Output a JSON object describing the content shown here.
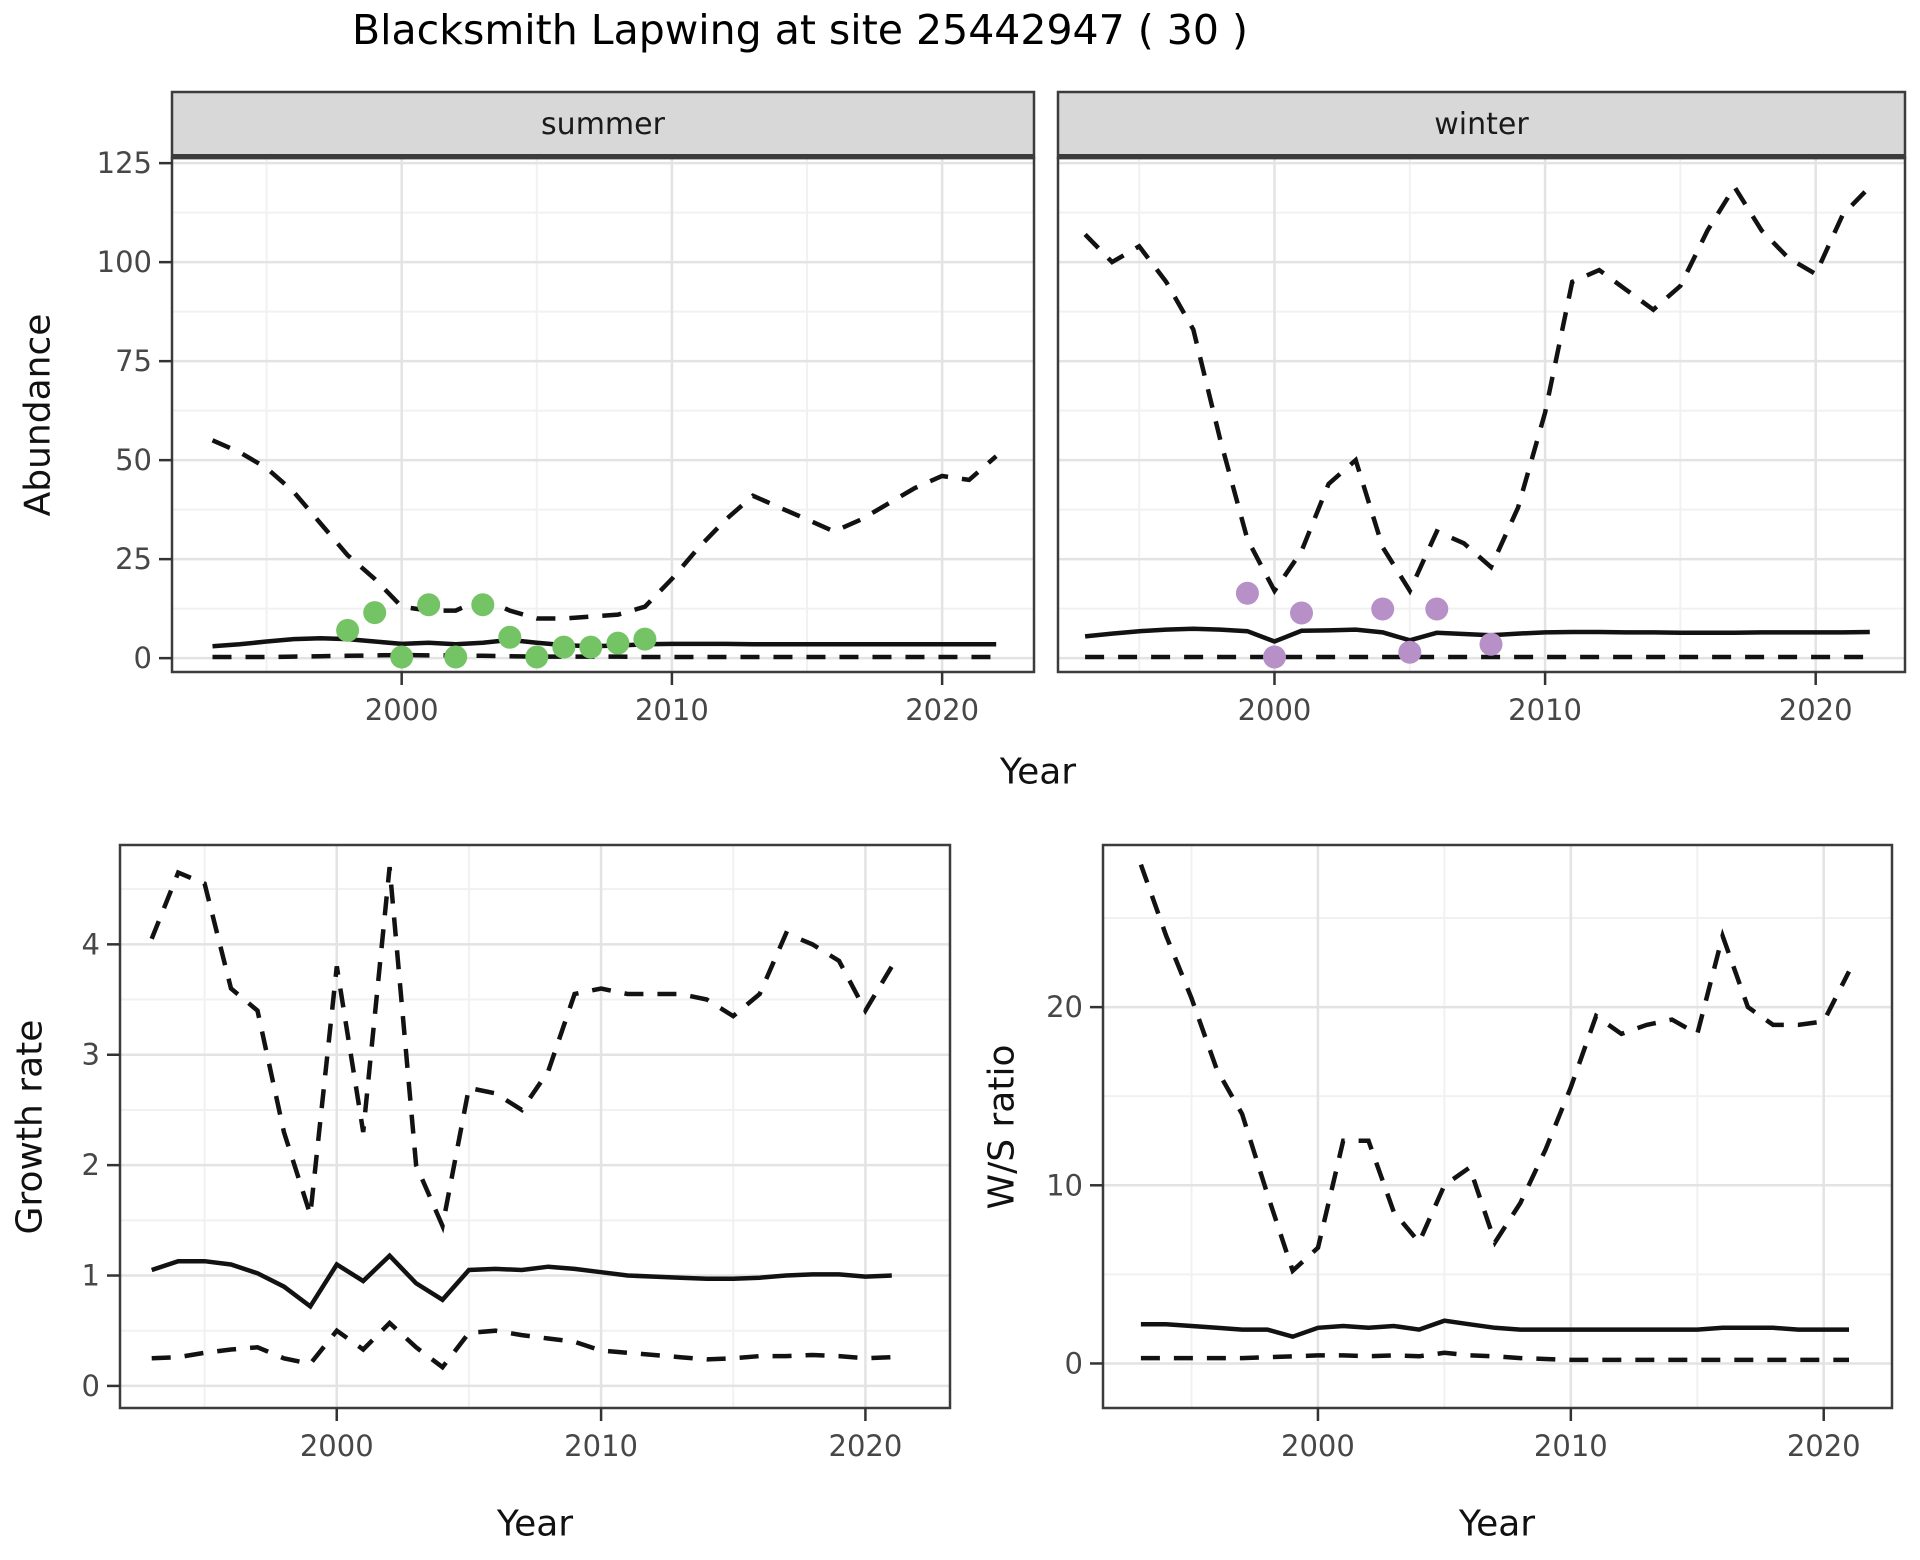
{
  "title": "Blacksmith Lapwing at site 25442947 ( 30 )",
  "colors": {
    "background": "#ffffff",
    "line": "#121212",
    "grid_major": "#e3e3e3",
    "grid_minor": "#f1f1f1",
    "panel_border": "#3c3c3c",
    "strip_fill": "#d8d8d8",
    "tick": "#333333",
    "tick_label": "#474747",
    "summer_points": "#74c465",
    "winter_points": "#b690c7"
  },
  "chart_data": [
    {
      "id": "abundance-summer",
      "type": "line",
      "facet_label": "summer",
      "xlabel": "Year",
      "ylabel": "Abundance",
      "xlim": [
        1991.5,
        2023.4
      ],
      "ylim": [
        -3.5,
        126.3
      ],
      "x_ticks": [
        2000,
        2010,
        2020
      ],
      "x_minor": [
        1995,
        2005,
        2015
      ],
      "y_ticks": [
        0,
        25,
        50,
        75,
        100,
        125
      ],
      "y_minor": [
        12.5,
        37.5,
        62.5,
        87.5,
        112.5
      ],
      "x": [
        1993,
        1994,
        1995,
        1996,
        1997,
        1998,
        1999,
        2000,
        2001,
        2002,
        2003,
        2004,
        2005,
        2006,
        2007,
        2008,
        2009,
        2010,
        2011,
        2012,
        2013,
        2014,
        2015,
        2016,
        2017,
        2018,
        2019,
        2020,
        2021,
        2022
      ],
      "series": [
        {
          "name": "upper-ci",
          "style": "dashed",
          "values": [
            55,
            52,
            48,
            42,
            34,
            26,
            20,
            13,
            12,
            12,
            15,
            12,
            10,
            10,
            10.5,
            11,
            13,
            20,
            28,
            35,
            41,
            38,
            35,
            32,
            35,
            39,
            43,
            46,
            45,
            51
          ]
        },
        {
          "name": "median",
          "style": "solid",
          "values": [
            3,
            3.5,
            4.2,
            4.8,
            5,
            4.8,
            4.2,
            3.6,
            3.9,
            3.5,
            3.9,
            4.6,
            3.9,
            3.3,
            3,
            3.2,
            3.5,
            3.6,
            3.6,
            3.6,
            3.5,
            3.5,
            3.5,
            3.5,
            3.5,
            3.5,
            3.5,
            3.5,
            3.5,
            3.5
          ]
        },
        {
          "name": "lower-ci",
          "style": "dashed",
          "values": [
            0.3,
            0.3,
            0.3,
            0.4,
            0.5,
            0.6,
            0.7,
            0.8,
            0.7,
            0.7,
            0.6,
            0.5,
            0.4,
            0.4,
            0.4,
            0.4,
            0.3,
            0.3,
            0.3,
            0.3,
            0.3,
            0.3,
            0.3,
            0.3,
            0.3,
            0.3,
            0.3,
            0.3,
            0.3,
            0.3
          ]
        }
      ],
      "points": {
        "name": "observed-counts",
        "color_key": "summer_points",
        "x": [
          1998,
          1999,
          2000,
          2001,
          2002,
          2003,
          2004,
          2005,
          2006,
          2007,
          2008,
          2009
        ],
        "y": [
          7,
          11.5,
          0.3,
          13.5,
          0.3,
          13.5,
          5.3,
          0.3,
          2.8,
          2.8,
          3.8,
          4.8
        ]
      }
    },
    {
      "id": "abundance-winter",
      "type": "line",
      "facet_label": "winter",
      "xlabel": "Year",
      "ylabel": "Abundance",
      "xlim": [
        1992.0,
        2023.3
      ],
      "ylim": [
        -3.5,
        126.3
      ],
      "x_ticks": [
        2000,
        2010,
        2020
      ],
      "x_minor": [
        1995,
        2005,
        2015
      ],
      "y_ticks": [
        0,
        25,
        50,
        75,
        100,
        125
      ],
      "y_minor": [
        12.5,
        37.5,
        62.5,
        87.5,
        112.5
      ],
      "x": [
        1993,
        1994,
        1995,
        1996,
        1997,
        1998,
        1999,
        2000,
        2001,
        2002,
        2003,
        2004,
        2005,
        2006,
        2007,
        2008,
        2009,
        2010,
        2011,
        2012,
        2013,
        2014,
        2015,
        2016,
        2017,
        2018,
        2019,
        2020,
        2021,
        2022
      ],
      "series": [
        {
          "name": "upper-ci",
          "style": "dashed",
          "values": [
            107,
            100,
            104,
            95,
            83,
            55,
            30,
            17,
            27,
            44,
            50,
            28,
            17,
            32,
            29,
            23,
            38,
            62,
            95,
            98,
            93,
            88,
            94,
            108,
            119,
            108,
            101,
            97,
            112,
            119
          ]
        },
        {
          "name": "median",
          "style": "solid",
          "values": [
            5.5,
            6.2,
            6.8,
            7.2,
            7.4,
            7.2,
            6.8,
            4.2,
            6.9,
            7,
            7.2,
            6.5,
            4.5,
            6.4,
            6.1,
            5.8,
            6.2,
            6.5,
            6.6,
            6.6,
            6.5,
            6.5,
            6.4,
            6.4,
            6.4,
            6.5,
            6.5,
            6.5,
            6.5,
            6.6
          ]
        },
        {
          "name": "lower-ci",
          "style": "dashed",
          "values": [
            0.3,
            0.3,
            0.3,
            0.3,
            0.3,
            0.3,
            0.3,
            0.3,
            0.3,
            0.3,
            0.3,
            0.3,
            0.3,
            0.3,
            0.3,
            0.3,
            0.3,
            0.3,
            0.3,
            0.3,
            0.3,
            0.3,
            0.3,
            0.3,
            0.3,
            0.3,
            0.3,
            0.3,
            0.3,
            0.3
          ]
        }
      ],
      "points": {
        "name": "observed-counts",
        "color_key": "winter_points",
        "x": [
          1999,
          2000,
          2001,
          2004,
          2005,
          2006,
          2008
        ],
        "y": [
          16.4,
          0.3,
          11.4,
          12.4,
          1.5,
          12.4,
          3.5
        ]
      }
    },
    {
      "id": "growth-rate",
      "type": "line",
      "facet_label": "",
      "xlabel": "Year",
      "ylabel": "Growth rate",
      "xlim": [
        1991.8,
        2023.2
      ],
      "ylim": [
        -0.2,
        4.9
      ],
      "x_ticks": [
        2000,
        2010,
        2020
      ],
      "x_minor": [
        1995,
        2005,
        2015
      ],
      "y_ticks": [
        0,
        1,
        2,
        3,
        4
      ],
      "y_minor": [
        0.5,
        1.5,
        2.5,
        3.5,
        4.5
      ],
      "x": [
        1993,
        1994,
        1995,
        1996,
        1997,
        1998,
        1999,
        2000,
        2001,
        2002,
        2003,
        2004,
        2005,
        2006,
        2007,
        2008,
        2009,
        2010,
        2011,
        2012,
        2013,
        2014,
        2015,
        2016,
        2017,
        2018,
        2019,
        2020,
        2021
      ],
      "series": [
        {
          "name": "upper-ci",
          "style": "dashed",
          "values": [
            4.05,
            4.65,
            4.55,
            3.6,
            3.4,
            2.3,
            1.55,
            3.8,
            2.3,
            4.7,
            2.0,
            1.45,
            2.7,
            2.65,
            2.5,
            2.85,
            3.55,
            3.6,
            3.55,
            3.55,
            3.55,
            3.5,
            3.35,
            3.55,
            4.1,
            4.0,
            3.85,
            3.4,
            3.8
          ]
        },
        {
          "name": "median",
          "style": "solid",
          "values": [
            1.05,
            1.13,
            1.13,
            1.1,
            1.02,
            0.9,
            0.72,
            1.1,
            0.95,
            1.18,
            0.93,
            0.78,
            1.05,
            1.06,
            1.05,
            1.08,
            1.06,
            1.03,
            1.0,
            0.99,
            0.98,
            0.97,
            0.97,
            0.98,
            1.0,
            1.01,
            1.01,
            0.99,
            1.0
          ]
        },
        {
          "name": "lower-ci",
          "style": "dashed",
          "values": [
            0.25,
            0.26,
            0.3,
            0.33,
            0.35,
            0.25,
            0.2,
            0.5,
            0.33,
            0.57,
            0.35,
            0.17,
            0.48,
            0.5,
            0.46,
            0.43,
            0.4,
            0.32,
            0.3,
            0.28,
            0.26,
            0.24,
            0.25,
            0.27,
            0.27,
            0.28,
            0.27,
            0.25,
            0.26
          ]
        }
      ]
    },
    {
      "id": "ws-ratio",
      "type": "line",
      "facet_label": "",
      "xlabel": "Year",
      "ylabel": "W/S ratio",
      "xlim": [
        1991.5,
        2022.7
      ],
      "ylim": [
        -2.5,
        29.1
      ],
      "x_ticks": [
        2000,
        2010,
        2020
      ],
      "x_minor": [
        1995,
        2005,
        2015
      ],
      "y_ticks": [
        0,
        10,
        20
      ],
      "y_minor": [
        5,
        15,
        25
      ],
      "x": [
        1993,
        1994,
        1995,
        1996,
        1997,
        1998,
        1999,
        2000,
        2001,
        2002,
        2003,
        2004,
        2005,
        2006,
        2007,
        2008,
        2009,
        2010,
        2011,
        2012,
        2013,
        2014,
        2015,
        2016,
        2017,
        2018,
        2019,
        2020,
        2021
      ],
      "series": [
        {
          "name": "upper-ci",
          "style": "dashed",
          "values": [
            28,
            24,
            20.5,
            16.5,
            14,
            9.5,
            5.2,
            6.5,
            12.5,
            12.5,
            8.5,
            6.8,
            10,
            11,
            6.8,
            9,
            12,
            15.5,
            19.5,
            18.5,
            19,
            19.3,
            18.5,
            24,
            20,
            19,
            19,
            19.2,
            22
          ]
        },
        {
          "name": "median",
          "style": "solid",
          "values": [
            2.2,
            2.2,
            2.1,
            2.0,
            1.9,
            1.9,
            1.5,
            2.0,
            2.1,
            2.0,
            2.1,
            1.9,
            2.4,
            2.2,
            2.0,
            1.9,
            1.9,
            1.9,
            1.9,
            1.9,
            1.9,
            1.9,
            1.9,
            2.0,
            2.0,
            2.0,
            1.9,
            1.9,
            1.9
          ]
        },
        {
          "name": "lower-ci",
          "style": "dashed",
          "values": [
            0.3,
            0.3,
            0.3,
            0.3,
            0.3,
            0.35,
            0.4,
            0.45,
            0.45,
            0.4,
            0.45,
            0.4,
            0.6,
            0.45,
            0.4,
            0.3,
            0.25,
            0.2,
            0.2,
            0.2,
            0.2,
            0.2,
            0.2,
            0.2,
            0.2,
            0.2,
            0.2,
            0.2,
            0.2
          ]
        }
      ]
    }
  ]
}
